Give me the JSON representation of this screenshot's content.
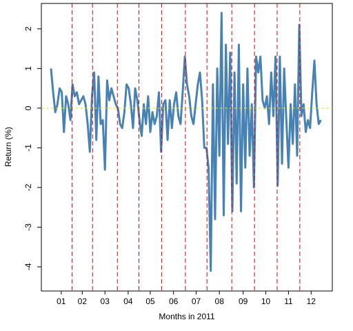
{
  "chart_data": {
    "type": "line",
    "xlabel": "Months in 2011",
    "ylabel": "Return (%)",
    "xlim": [
      -7.9,
      261.6
    ],
    "ylim": [
      -4.61,
      2.64
    ],
    "yticks": [
      2,
      1,
      0,
      -1,
      -2,
      -3,
      -4
    ],
    "xticks": [
      {
        "value": 10.5,
        "label": "01"
      },
      {
        "value": 30,
        "label": "02"
      },
      {
        "value": 51,
        "label": "03"
      },
      {
        "value": 72.5,
        "label": "04"
      },
      {
        "value": 93,
        "label": "05"
      },
      {
        "value": 114.5,
        "label": "06"
      },
      {
        "value": 135.5,
        "label": "07"
      },
      {
        "value": 157,
        "label": "08"
      },
      {
        "value": 179,
        "label": "09"
      },
      {
        "value": 200,
        "label": "10"
      },
      {
        "value": 221,
        "label": "11"
      },
      {
        "value": 242,
        "label": "12"
      }
    ],
    "vlines": [
      20.5,
      39.5,
      62.5,
      82.5,
      103.5,
      125.5,
      145.5,
      168.5,
      189.5,
      210.5,
      231.5
    ],
    "vline_color": "#dd0000",
    "hline": 0,
    "hline_color": "#e8e020",
    "x": [
      1,
      3,
      5,
      7,
      9,
      11,
      13,
      15,
      17,
      19,
      21,
      23,
      25,
      27,
      29,
      31,
      33,
      35,
      37,
      39,
      41,
      43,
      45,
      47,
      49,
      51,
      53,
      55,
      57,
      59,
      61,
      63,
      65,
      67,
      69,
      71,
      73,
      75,
      77,
      79,
      81,
      83,
      85,
      87,
      89,
      91,
      93,
      95,
      97,
      99,
      101,
      103,
      105,
      107,
      109,
      111,
      113,
      115,
      117,
      119,
      121,
      123,
      125,
      127,
      129,
      131,
      133,
      135,
      137,
      139,
      141,
      143,
      145,
      147,
      149,
      151,
      153,
      155,
      157,
      159,
      161,
      163,
      165,
      167,
      169,
      171,
      173,
      175,
      177,
      179,
      181,
      183,
      185,
      187,
      189,
      191,
      193,
      195,
      197,
      199,
      201,
      203,
      205,
      207,
      209,
      211,
      213,
      215,
      217,
      219,
      221,
      223,
      225,
      227,
      229,
      231,
      233,
      235,
      237,
      239,
      241,
      243,
      245,
      247,
      249,
      251
    ],
    "series": [
      {
        "color": "#4682b4",
        "values": [
          1.0,
          0.4,
          -0.1,
          0.1,
          0.5,
          0.4,
          -0.6,
          0.3,
          0.1,
          -0.3,
          0.6,
          0.3,
          0.4,
          0.1,
          0.2,
          0.3,
          0.1,
          -0.4,
          -1.1,
          0.3,
          0.9,
          -0.8,
          0.8,
          -0.4,
          -0.3,
          -1.55,
          0.7,
          0.2,
          0.5,
          0.3,
          0.1,
          0.0,
          -0.4,
          -0.5,
          -0.1,
          0.6,
          0.5,
          0.1,
          -0.5,
          0.5,
          0.2,
          -0.3,
          -0.7,
          0.1,
          -0.4,
          0.3,
          -0.6,
          -0.1,
          -0.4,
          -0.2,
          0.4,
          -1.1,
          0.1,
          0.2,
          -0.8,
          0.2,
          -0.5,
          0.1,
          0.4,
          -0.2,
          -0.4,
          0.4,
          1.3,
          0.6,
          0.3,
          -0.2,
          -0.4,
          0.1,
          0.6,
          0.9,
          0.2,
          -1.0,
          -1.0,
          -1.5,
          -4.1,
          0.6,
          -2.8,
          1.0,
          -1.2,
          2.4,
          -2.7,
          1.6,
          -0.9,
          1.4,
          -2.6,
          0.9,
          -1.9,
          1.6,
          -2.6,
          0.6,
          -1.5,
          1.0,
          -1.2,
          0.1,
          -2.0,
          1.3,
          0.9,
          1.3,
          0.2,
          0.0,
          0.3,
          -0.4,
          0.9,
          -0.2,
          1.3,
          -1.95,
          1.3,
          -1.4,
          1.0,
          -0.3,
          -1.5,
          0.1,
          -0.9,
          0.6,
          -1.2,
          2.1,
          -0.2,
          0.1,
          -0.6,
          -0.3,
          -0.5,
          0.4,
          1.2,
          0.1,
          -0.4,
          -0.3
        ]
      }
    ]
  }
}
